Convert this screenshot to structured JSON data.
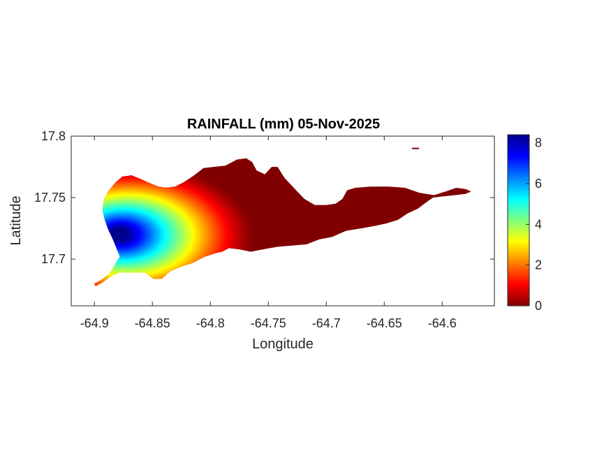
{
  "chart_data": {
    "type": "heatmap",
    "title": "RAINFALL (mm) 05-Nov-2025",
    "xlabel": "Longitude",
    "ylabel": "Latitude",
    "xlim": [
      -64.92,
      -64.555
    ],
    "ylim": [
      17.662,
      17.8
    ],
    "xticks": [
      -64.9,
      -64.85,
      -64.8,
      -64.75,
      -64.7,
      -64.65,
      -64.6
    ],
    "xtick_labels": [
      "-64.9",
      "-64.85",
      "-64.8",
      "-64.75",
      "-64.7",
      "-64.65",
      "-64.6"
    ],
    "yticks": [
      17.7,
      17.75,
      17.8
    ],
    "ytick_labels": [
      "17.7",
      "17.75",
      "17.8"
    ],
    "colormap": "jet",
    "colorbar": {
      "range": [
        0,
        8.4
      ],
      "ticks": [
        0,
        2,
        4,
        6,
        8
      ],
      "tick_labels": [
        "0",
        "2",
        "4",
        "6",
        "8"
      ]
    },
    "grid": false,
    "rain_field": {
      "background_mm": 0,
      "peak_center": [
        -64.875,
        17.72
      ],
      "peak_value_mm": 8.4
    },
    "island_outline": [
      [
        -64.9,
        17.68
      ],
      [
        -64.894,
        17.683
      ],
      [
        -64.887,
        17.688
      ],
      [
        -64.882,
        17.696
      ],
      [
        -64.878,
        17.702
      ],
      [
        -64.881,
        17.709
      ],
      [
        -64.884,
        17.716
      ],
      [
        -64.888,
        17.724
      ],
      [
        -64.891,
        17.732
      ],
      [
        -64.893,
        17.74
      ],
      [
        -64.892,
        17.748
      ],
      [
        -64.888,
        17.755
      ],
      [
        -64.882,
        17.762
      ],
      [
        -64.876,
        17.767
      ],
      [
        -64.868,
        17.768
      ],
      [
        -64.86,
        17.765
      ],
      [
        -64.853,
        17.762
      ],
      [
        -64.845,
        17.759
      ],
      [
        -64.838,
        17.758
      ],
      [
        -64.83,
        17.759
      ],
      [
        -64.822,
        17.763
      ],
      [
        -64.814,
        17.768
      ],
      [
        -64.806,
        17.774
      ],
      [
        -64.797,
        17.775
      ],
      [
        -64.787,
        17.776
      ],
      [
        -64.777,
        17.781
      ],
      [
        -64.769,
        17.782
      ],
      [
        -64.764,
        17.779
      ],
      [
        -64.76,
        17.772
      ],
      [
        -64.753,
        17.769
      ],
      [
        -64.747,
        17.775
      ],
      [
        -64.742,
        17.775
      ],
      [
        -64.736,
        17.766
      ],
      [
        -64.727,
        17.757
      ],
      [
        -64.719,
        17.749
      ],
      [
        -64.71,
        17.744
      ],
      [
        -64.7,
        17.744
      ],
      [
        -64.692,
        17.745
      ],
      [
        -64.686,
        17.749
      ],
      [
        -64.682,
        17.756
      ],
      [
        -64.675,
        17.758
      ],
      [
        -64.662,
        17.759
      ],
      [
        -64.646,
        17.759
      ],
      [
        -64.632,
        17.758
      ],
      [
        -64.62,
        17.754
      ],
      [
        -64.607,
        17.752
      ],
      [
        -64.597,
        17.755
      ],
      [
        -64.588,
        17.758
      ],
      [
        -64.58,
        17.757
      ],
      [
        -64.575,
        17.755
      ],
      [
        -64.58,
        17.753
      ],
      [
        -64.589,
        17.752
      ],
      [
        -64.599,
        17.751
      ],
      [
        -64.608,
        17.75
      ],
      [
        -64.614,
        17.746
      ],
      [
        -64.621,
        17.741
      ],
      [
        -64.63,
        17.737
      ],
      [
        -64.638,
        17.732
      ],
      [
        -64.648,
        17.729
      ],
      [
        -64.658,
        17.727
      ],
      [
        -64.67,
        17.725
      ],
      [
        -64.683,
        17.723
      ],
      [
        -64.695,
        17.718
      ],
      [
        -64.706,
        17.716
      ],
      [
        -64.717,
        17.712
      ],
      [
        -64.73,
        17.711
      ],
      [
        -64.742,
        17.71
      ],
      [
        -64.754,
        17.708
      ],
      [
        -64.765,
        17.706
      ],
      [
        -64.775,
        17.708
      ],
      [
        -64.784,
        17.709
      ],
      [
        -64.79,
        17.706
      ],
      [
        -64.795,
        17.705
      ],
      [
        -64.805,
        17.702
      ],
      [
        -64.815,
        17.697
      ],
      [
        -64.825,
        17.694
      ],
      [
        -64.835,
        17.69
      ],
      [
        -64.842,
        17.684
      ],
      [
        -64.849,
        17.684
      ],
      [
        -64.856,
        17.689
      ],
      [
        -64.863,
        17.689
      ],
      [
        -64.871,
        17.689
      ],
      [
        -64.879,
        17.689
      ],
      [
        -64.886,
        17.686
      ],
      [
        -64.893,
        17.681
      ],
      [
        -64.899,
        17.678
      ]
    ],
    "islet": [
      [
        -64.626,
        17.79
      ],
      [
        -64.62,
        17.79
      ]
    ]
  }
}
